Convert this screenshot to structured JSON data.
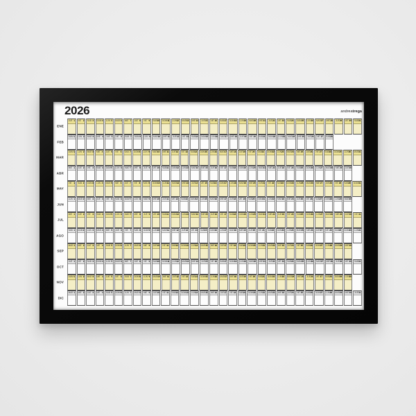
{
  "poster": {
    "title": "2026",
    "brand": {
      "prefix": "andrea",
      "suffix": "trega"
    },
    "weekday_sequence": [
      "LUN",
      "MAR",
      "MIE",
      "JUE",
      "VIE",
      "SAB",
      "DOM"
    ],
    "months": [
      {
        "label": "ENE",
        "days": 31,
        "first_weekday": "JUE",
        "highlighted": true
      },
      {
        "label": "FEB",
        "days": 28,
        "first_weekday": "DOM",
        "highlighted": false
      },
      {
        "label": "MAR",
        "days": 31,
        "first_weekday": "DOM",
        "highlighted": true
      },
      {
        "label": "ABR",
        "days": 30,
        "first_weekday": "MIE",
        "highlighted": false
      },
      {
        "label": "MAY",
        "days": 31,
        "first_weekday": "VIE",
        "highlighted": true
      },
      {
        "label": "JUN",
        "days": 30,
        "first_weekday": "LUN",
        "highlighted": false
      },
      {
        "label": "JUL",
        "days": 31,
        "first_weekday": "MIE",
        "highlighted": true
      },
      {
        "label": "AGO",
        "days": 31,
        "first_weekday": "SAB",
        "highlighted": false
      },
      {
        "label": "SEP",
        "days": 30,
        "first_weekday": "MAR",
        "highlighted": true
      },
      {
        "label": "OCT",
        "days": 31,
        "first_weekday": "JUE",
        "highlighted": false
      },
      {
        "label": "NOV",
        "days": 30,
        "first_weekday": "DOM",
        "highlighted": true
      },
      {
        "label": "DIC",
        "days": 31,
        "first_weekday": "MAR",
        "highlighted": false
      }
    ],
    "colors": {
      "wall": "#ececec",
      "frame": "#0b0b0b",
      "paper": "#fcfcfc",
      "highlight_body": "#f4eec6",
      "highlight_header": "#ebe092",
      "plain_body": "#fdfdfd",
      "plain_header": "#e3e3e3",
      "grid_line": "#7d7d7d",
      "text": "#1b1b1b"
    }
  }
}
